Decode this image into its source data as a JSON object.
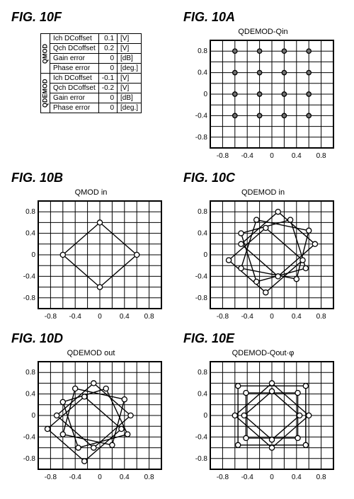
{
  "figure_labels": {
    "f": "FIG. 10F",
    "a": "FIG. 10A",
    "b": "FIG. 10B",
    "c": "FIG. 10C",
    "d": "FIG. 10D",
    "e": "FIG. 10E"
  },
  "chart_titles": {
    "a": "QDEMOD-Qin",
    "b": "QMOD in",
    "c": "QDEMOD in",
    "d": "QDEMOD out",
    "e": "QDEMOD-Qout·φ"
  },
  "axis": {
    "xlim": [
      -1.0,
      1.0
    ],
    "ylim": [
      -1.0,
      1.0
    ],
    "ticks": [
      -0.8,
      -0.4,
      0,
      0.4,
      0.8
    ],
    "grid_step": 0.2,
    "grid_color": "#000000",
    "grid_width": 1,
    "border_color": "#000000",
    "border_width": 2,
    "tick_fontsize": 10,
    "background_color": "#ffffff"
  },
  "marker_filled": {
    "shape": "circle",
    "radius": 3.2,
    "fill": "#707070",
    "stroke": "#000000",
    "stroke_width": 1.3
  },
  "marker_open": {
    "shape": "circle",
    "radius": 3.6,
    "fill": "#ffffff",
    "stroke": "#000000",
    "stroke_width": 1.3
  },
  "line_style": {
    "stroke": "#000000",
    "width": 1.4
  },
  "charts": {
    "a": {
      "type": "scatter",
      "marker": "filled",
      "points": [
        [
          -0.6,
          0.8
        ],
        [
          -0.2,
          0.8
        ],
        [
          0.2,
          0.8
        ],
        [
          0.6,
          0.8
        ],
        [
          -0.6,
          0.4
        ],
        [
          -0.2,
          0.4
        ],
        [
          0.2,
          0.4
        ],
        [
          0.6,
          0.4
        ],
        [
          -0.6,
          0.0
        ],
        [
          -0.2,
          0.0
        ],
        [
          0.2,
          0.0
        ],
        [
          0.6,
          0.0
        ],
        [
          -0.6,
          -0.4
        ],
        [
          -0.2,
          -0.4
        ],
        [
          0.2,
          -0.4
        ],
        [
          0.6,
          -0.4
        ]
      ]
    },
    "b": {
      "type": "line-loop",
      "marker": "open",
      "paths": [
        [
          [
            0.6,
            0.0
          ],
          [
            0.0,
            0.6
          ],
          [
            -0.6,
            0.0
          ],
          [
            0.0,
            -0.6
          ],
          [
            0.6,
            0.0
          ]
        ]
      ]
    },
    "c": {
      "type": "line-loop",
      "marker": "open",
      "paths": [
        [
          [
            0.7,
            0.2
          ],
          [
            0.1,
            0.8
          ],
          [
            -0.5,
            0.2
          ],
          [
            0.1,
            -0.4
          ],
          [
            0.7,
            0.2
          ]
        ],
        [
          [
            0.6,
            0.45
          ],
          [
            -0.25,
            0.65
          ],
          [
            -0.5,
            -0.25
          ],
          [
            0.4,
            -0.45
          ],
          [
            0.6,
            0.45
          ]
        ],
        [
          [
            0.3,
            0.65
          ],
          [
            -0.5,
            0.4
          ],
          [
            -0.25,
            -0.5
          ],
          [
            0.55,
            -0.25
          ],
          [
            0.3,
            0.65
          ]
        ],
        [
          [
            0.5,
            -0.1
          ],
          [
            -0.1,
            0.5
          ],
          [
            -0.7,
            -0.1
          ],
          [
            -0.1,
            -0.7
          ],
          [
            0.5,
            -0.1
          ]
        ]
      ]
    },
    "d": {
      "type": "line-loop",
      "marker": "open",
      "paths": [
        [
          [
            0.5,
            0.0
          ],
          [
            -0.1,
            0.6
          ],
          [
            -0.7,
            0.0
          ],
          [
            -0.1,
            -0.6
          ],
          [
            0.5,
            0.0
          ]
        ],
        [
          [
            0.4,
            0.3
          ],
          [
            -0.4,
            0.5
          ],
          [
            -0.6,
            -0.35
          ],
          [
            0.2,
            -0.55
          ],
          [
            0.4,
            0.3
          ]
        ],
        [
          [
            0.1,
            0.5
          ],
          [
            -0.6,
            0.25
          ],
          [
            -0.35,
            -0.6
          ],
          [
            0.45,
            -0.35
          ],
          [
            0.1,
            0.5
          ]
        ],
        [
          [
            0.35,
            -0.25
          ],
          [
            -0.25,
            0.35
          ],
          [
            -0.85,
            -0.25
          ],
          [
            -0.25,
            -0.85
          ],
          [
            0.35,
            -0.25
          ]
        ]
      ]
    },
    "e": {
      "type": "line-loop",
      "marker": "open",
      "paths": [
        [
          [
            0.55,
            0.55
          ],
          [
            -0.55,
            0.55
          ],
          [
            -0.55,
            -0.55
          ],
          [
            0.55,
            -0.55
          ],
          [
            0.55,
            0.55
          ]
        ],
        [
          [
            0.6,
            0.0
          ],
          [
            0.0,
            0.6
          ],
          [
            -0.6,
            0.0
          ],
          [
            0.0,
            -0.6
          ],
          [
            0.6,
            0.0
          ]
        ],
        [
          [
            0.42,
            0.42
          ],
          [
            -0.42,
            0.42
          ],
          [
            -0.42,
            -0.42
          ],
          [
            0.42,
            -0.42
          ],
          [
            0.42,
            0.42
          ]
        ],
        [
          [
            0.45,
            0.0
          ],
          [
            0.0,
            0.45
          ],
          [
            -0.45,
            0.0
          ],
          [
            0.0,
            -0.45
          ],
          [
            0.45,
            0.0
          ]
        ]
      ]
    }
  },
  "table": {
    "groups": [
      {
        "header": "QMOD",
        "rows": [
          {
            "name": "Ich DCoffset",
            "value": "0.1",
            "unit": "[V]"
          },
          {
            "name": "Qch DCoffset",
            "value": "0.2",
            "unit": "[V]"
          },
          {
            "name": "Gain error",
            "value": "0",
            "unit": "[dB]"
          },
          {
            "name": "Phase error",
            "value": "0",
            "unit": "[deg.]"
          }
        ]
      },
      {
        "header": "QDEMOD",
        "rows": [
          {
            "name": "Ich DCoffset",
            "value": "-0.1",
            "unit": "[V]"
          },
          {
            "name": "Qch DCoffset",
            "value": "-0.2",
            "unit": "[V]"
          },
          {
            "name": "Gain error",
            "value": "0",
            "unit": "[dB]"
          },
          {
            "name": "Phase error",
            "value": "0",
            "unit": "[deg.]"
          }
        ]
      }
    ]
  }
}
